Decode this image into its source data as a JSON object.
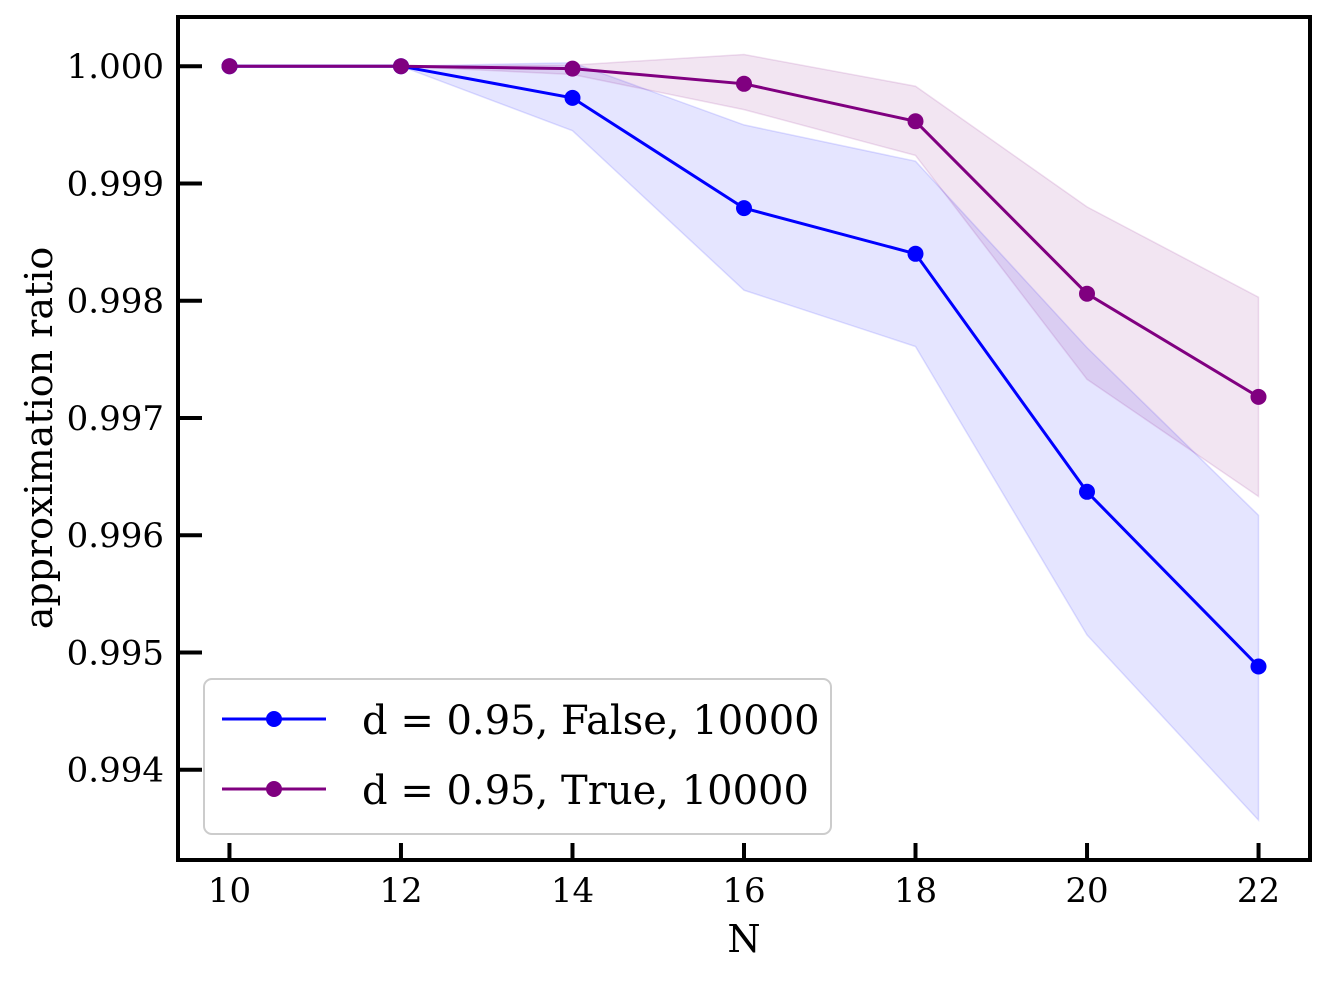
{
  "chart_data": {
    "type": "line",
    "title": "",
    "xlabel": "N",
    "ylabel": "approximation ratio",
    "x": [
      10,
      12,
      14,
      16,
      18,
      20,
      22
    ],
    "xticks": [
      10,
      12,
      14,
      16,
      18,
      20,
      22
    ],
    "xtick_labels": [
      "10",
      "12",
      "14",
      "16",
      "18",
      "20",
      "22"
    ],
    "yticks": [
      0.994,
      0.995,
      0.996,
      0.997,
      0.998,
      0.999,
      1.0
    ],
    "ytick_labels": [
      "0.994",
      "0.995",
      "0.996",
      "0.997",
      "0.998",
      "0.999",
      "1.000"
    ],
    "xlim": [
      9.4,
      22.6
    ],
    "ylim": [
      0.99323,
      1.00042
    ],
    "grid": false,
    "legend_position": "bottom-left",
    "series": [
      {
        "name": "d = 0.95, False, 10000",
        "color": "#0000ff",
        "band_color": "#0000ff",
        "values": [
          1.0,
          1.0,
          0.99973,
          0.99879,
          0.9984,
          0.99637,
          0.99488
        ],
        "upper": [
          1.0,
          1.0,
          1.00003,
          0.9995,
          0.99919,
          0.9976,
          0.99617
        ],
        "lower": [
          1.0,
          1.0,
          0.99945,
          0.99809,
          0.99761,
          0.99515,
          0.99357
        ]
      },
      {
        "name": "d = 0.95, True, 10000",
        "color": "#800080",
        "band_color": "#800080",
        "values": [
          1.0,
          1.0,
          0.99998,
          0.99985,
          0.99953,
          0.99806,
          0.99718
        ],
        "upper": [
          1.0,
          1.0,
          1.00001,
          1.0001,
          0.99983,
          0.9988,
          0.99803
        ],
        "lower": [
          1.0,
          1.0,
          0.99993,
          0.99963,
          0.99924,
          0.99733,
          0.99633
        ]
      }
    ]
  }
}
